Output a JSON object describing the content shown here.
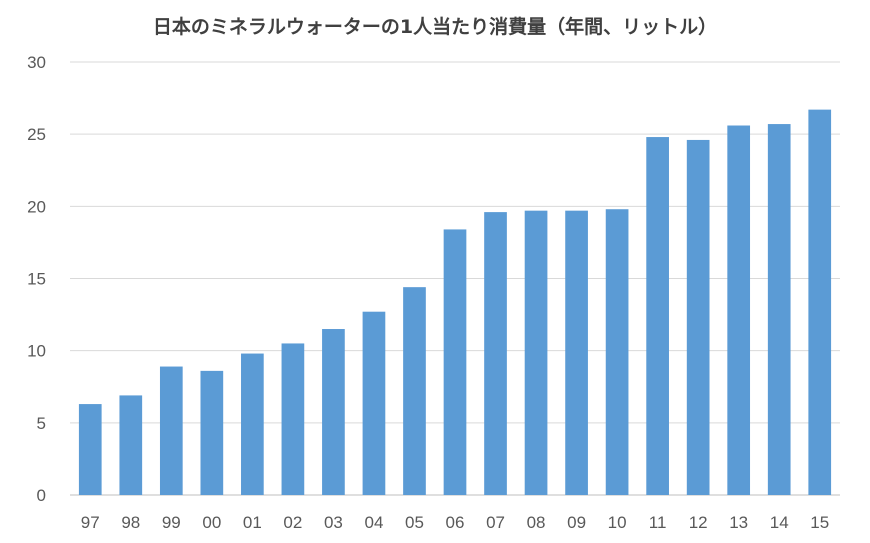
{
  "chart_data": {
    "type": "bar",
    "title": "日本のミネラルウォーターの1人当たり消費量（年間、リットル）",
    "categories": [
      "97",
      "98",
      "99",
      "00",
      "01",
      "02",
      "03",
      "04",
      "05",
      "06",
      "07",
      "08",
      "09",
      "10",
      "11",
      "12",
      "13",
      "14",
      "15"
    ],
    "series": [
      {
        "values": [
          6.3,
          6.9,
          8.9,
          8.6,
          9.8,
          10.5,
          11.5,
          12.7,
          14.4,
          18.4,
          19.6,
          19.7,
          19.7,
          19.8,
          24.8,
          24.6,
          25.6,
          25.7,
          26.7
        ]
      }
    ],
    "ylim": [
      0,
      30
    ],
    "yticks": [
      "0",
      "5",
      "10",
      "15",
      "20",
      "25",
      "30"
    ],
    "xlabel": "",
    "ylabel": "",
    "grid": true,
    "bar_color": "#5B9BD5",
    "gridline_color": "#D9D9D9"
  }
}
